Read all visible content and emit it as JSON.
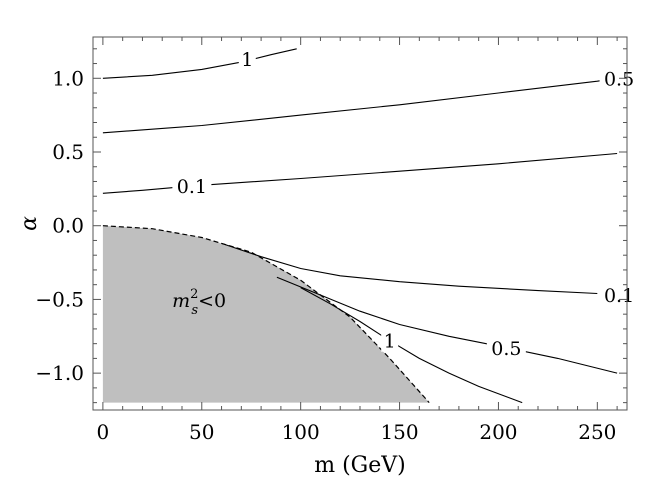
{
  "chart_data": {
    "type": "contour",
    "xlabel": "m (GeV)",
    "ylabel": "α",
    "xlim": [
      -5,
      265
    ],
    "ylim": [
      -1.25,
      1.28
    ],
    "x_ticks": [
      0,
      50,
      100,
      150,
      200,
      250
    ],
    "x_tick_labels": [
      "0",
      "50",
      "100",
      "150",
      "200",
      "250"
    ],
    "y_ticks": [
      1.0,
      0.5,
      0.0,
      -0.5,
      -1.0
    ],
    "y_tick_labels": [
      "1.0",
      "0.5",
      "0.0",
      "−0.5",
      "−1.0"
    ],
    "grid": false,
    "contours": [
      {
        "label": "1",
        "points": [
          [
            0,
            1.0
          ],
          [
            25,
            1.02
          ],
          [
            50,
            1.06
          ],
          [
            70,
            1.11
          ],
          [
            85,
            1.16
          ],
          [
            98,
            1.2
          ]
        ],
        "label_at": [
          73,
          1.13
        ]
      },
      {
        "label": "0.5",
        "points": [
          [
            0,
            0.63
          ],
          [
            50,
            0.68
          ],
          [
            100,
            0.75
          ],
          [
            150,
            0.82
          ],
          [
            200,
            0.9
          ],
          [
            250,
            0.98
          ],
          [
            260,
            1.0
          ]
        ],
        "label_at": [
          261,
          1.0
        ]
      },
      {
        "label": "0.1",
        "points": [
          [
            0,
            0.22
          ],
          [
            20,
            0.24
          ],
          [
            45,
            0.27
          ],
          [
            100,
            0.32
          ],
          [
            150,
            0.37
          ],
          [
            200,
            0.42
          ],
          [
            260,
            0.49
          ]
        ],
        "label_at": [
          45,
          0.27
        ]
      },
      {
        "label": "0.1",
        "points": [
          [
            60,
            -0.12
          ],
          [
            80,
            -0.21
          ],
          [
            100,
            -0.29
          ],
          [
            120,
            -0.34
          ],
          [
            150,
            -0.38
          ],
          [
            180,
            -0.41
          ],
          [
            220,
            -0.44
          ],
          [
            250,
            -0.46
          ]
        ],
        "label_at": [
          261,
          -0.47
        ]
      },
      {
        "label": "0.5",
        "points": [
          [
            88,
            -0.35
          ],
          [
            110,
            -0.47
          ],
          [
            130,
            -0.58
          ],
          [
            150,
            -0.67
          ],
          [
            175,
            -0.75
          ],
          [
            205,
            -0.83
          ],
          [
            230,
            -0.9
          ],
          [
            260,
            -1.0
          ]
        ],
        "label_at": [
          204,
          -0.83
        ]
      },
      {
        "label": "1",
        "points": [
          [
            100,
            -0.42
          ],
          [
            115,
            -0.53
          ],
          [
            130,
            -0.65
          ],
          [
            145,
            -0.78
          ],
          [
            160,
            -0.9
          ],
          [
            175,
            -1.0
          ],
          [
            190,
            -1.09
          ],
          [
            212,
            -1.2
          ]
        ],
        "label_at": [
          145,
          -0.78
        ]
      }
    ],
    "shaded_regions": [
      {
        "label_main": "m",
        "label_sup": "2",
        "label_sub": "s",
        "label_rel": "<0",
        "label_at": [
          35,
          -0.55
        ],
        "color": "#bfbfbf",
        "boundary_style": "dashed",
        "boundary": [
          [
            0,
            0.0
          ],
          [
            25,
            -0.02
          ],
          [
            50,
            -0.08
          ],
          [
            75,
            -0.18
          ],
          [
            100,
            -0.37
          ],
          [
            125,
            -0.62
          ],
          [
            145,
            -0.9
          ],
          [
            165,
            -1.2
          ]
        ]
      }
    ]
  }
}
